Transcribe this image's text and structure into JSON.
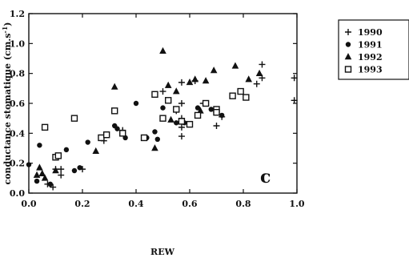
{
  "chart_data": {
    "type": "scatter",
    "xlabel": "REW",
    "ylabel": "conductance stomatique (cm.s",
    "ylabel_sup": "-1",
    "ylabel_close": ")",
    "panel_label": "c",
    "xlim": [
      0,
      1.0
    ],
    "ylim": [
      0,
      1.2
    ],
    "xticks": [
      0.0,
      0.2,
      0.4,
      0.6,
      0.8,
      1.0
    ],
    "xtick_labels": [
      "0.0",
      "0.2",
      "0.4",
      "0.6",
      "0.8",
      "1.0"
    ],
    "yticks": [
      0.0,
      0.2,
      0.4,
      0.6,
      0.8,
      1.0,
      1.2
    ],
    "ytick_labels": [
      "0.0",
      "0.2",
      "0.4",
      "0.6",
      "0.8",
      "1.0",
      "1.2"
    ],
    "grid": false,
    "legend_position": "outside-right",
    "series": [
      {
        "name": "1990",
        "marker": "plus",
        "x": [
          0.07,
          0.09,
          0.1,
          0.12,
          0.12,
          0.2,
          0.28,
          0.35,
          0.5,
          0.5,
          0.55,
          0.57,
          0.57,
          0.57,
          0.57,
          0.57,
          0.62,
          0.65,
          0.7,
          0.72,
          0.85,
          0.87,
          0.87,
          0.99,
          0.99
        ],
        "y": [
          0.06,
          0.04,
          0.16,
          0.16,
          0.12,
          0.16,
          0.35,
          0.42,
          0.68,
          0.5,
          0.55,
          0.74,
          0.6,
          0.44,
          0.38,
          0.5,
          0.75,
          0.6,
          0.45,
          0.51,
          0.73,
          0.86,
          0.77,
          0.77,
          0.62
        ]
      },
      {
        "name": "1991",
        "marker": "circle",
        "x": [
          0.0,
          0.03,
          0.04,
          0.08,
          0.14,
          0.17,
          0.19,
          0.22,
          0.32,
          0.33,
          0.36,
          0.4,
          0.44,
          0.47,
          0.48,
          0.5,
          0.55,
          0.58,
          0.63,
          0.68,
          0.72
        ],
        "y": [
          0.19,
          0.08,
          0.32,
          0.06,
          0.29,
          0.15,
          0.17,
          0.34,
          0.45,
          0.43,
          0.37,
          0.6,
          0.37,
          0.41,
          0.36,
          0.57,
          0.47,
          0.47,
          0.57,
          0.56,
          0.52
        ]
      },
      {
        "name": "1992",
        "marker": "triangle",
        "x": [
          0.03,
          0.04,
          0.05,
          0.06,
          0.1,
          0.25,
          0.32,
          0.47,
          0.5,
          0.52,
          0.53,
          0.55,
          0.6,
          0.62,
          0.64,
          0.66,
          0.69,
          0.77,
          0.82,
          0.86
        ],
        "y": [
          0.12,
          0.17,
          0.13,
          0.1,
          0.15,
          0.28,
          0.71,
          0.3,
          0.95,
          0.72,
          0.49,
          0.68,
          0.74,
          0.76,
          0.55,
          0.75,
          0.82,
          0.85,
          0.76,
          0.8
        ]
      },
      {
        "name": "1993",
        "marker": "square",
        "x": [
          0.06,
          0.1,
          0.11,
          0.17,
          0.27,
          0.29,
          0.32,
          0.35,
          0.43,
          0.47,
          0.5,
          0.52,
          0.55,
          0.57,
          0.6,
          0.63,
          0.66,
          0.7,
          0.7,
          0.76,
          0.79,
          0.81
        ],
        "y": [
          0.44,
          0.24,
          0.25,
          0.5,
          0.37,
          0.39,
          0.55,
          0.4,
          0.37,
          0.66,
          0.5,
          0.62,
          0.56,
          0.48,
          0.46,
          0.52,
          0.6,
          0.56,
          0.54,
          0.65,
          0.68,
          0.64
        ]
      }
    ]
  }
}
